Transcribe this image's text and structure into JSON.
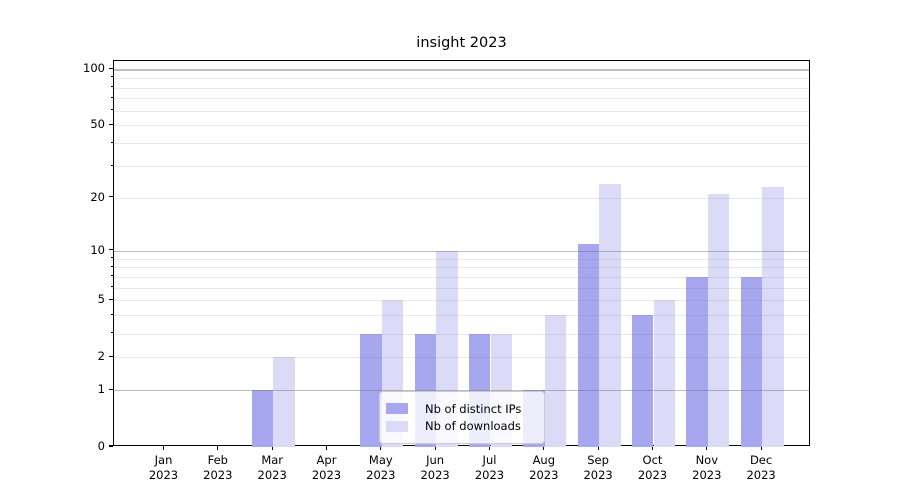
{
  "title": "insight 2023",
  "chart_data": {
    "type": "bar",
    "title": "insight 2023",
    "categories": [
      "Jan 2023",
      "Feb 2023",
      "Mar 2023",
      "Apr 2023",
      "May 2023",
      "Jun 2023",
      "Jul 2023",
      "Aug 2023",
      "Sep 2023",
      "Oct 2023",
      "Nov 2023",
      "Dec 2023"
    ],
    "series": [
      {
        "name": "Nb of distinct IPs",
        "color": "#a7a7f0",
        "values": [
          0,
          0,
          1,
          0,
          3,
          3,
          3,
          1,
          11,
          4,
          7,
          7
        ]
      },
      {
        "name": "Nb of downloads",
        "color": "#dbdbf8",
        "values": [
          0,
          0,
          2,
          0,
          5,
          10,
          3,
          4,
          24,
          5,
          21,
          23
        ]
      }
    ],
    "xlabel": "",
    "ylabel": "",
    "y_scale": "log1p",
    "ylim": [
      0,
      111
    ],
    "y_ticks": [
      0,
      1,
      2,
      5,
      10,
      20,
      50,
      100
    ],
    "y_major_gridlines": [
      1,
      10,
      100
    ],
    "y_minor_gridlines": [
      2,
      3,
      4,
      5,
      6,
      7,
      8,
      9,
      20,
      30,
      40,
      50,
      60,
      70,
      80,
      90
    ],
    "grid": "on",
    "legend_position": "lower center"
  },
  "colors": {
    "major_grid": "rgba(110,110,110,0.45)",
    "minor_grid": "rgba(110,110,110,0.15)",
    "spine": "#000000",
    "text": "#000000",
    "legend_border": "#cccccc",
    "legend_background": "rgba(255,255,255,0.8)"
  }
}
